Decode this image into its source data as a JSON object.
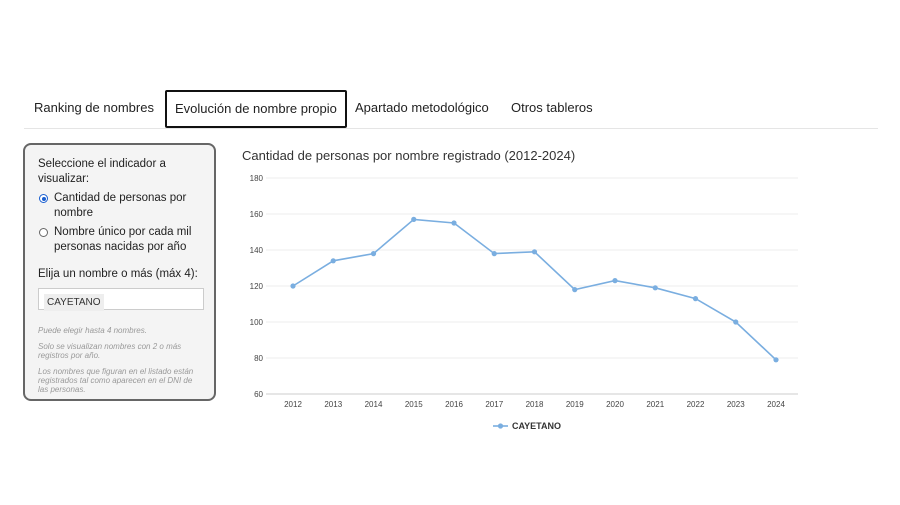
{
  "tabs": [
    {
      "label": "Ranking de nombres"
    },
    {
      "label": "Evolución de nombre propio",
      "active": true
    },
    {
      "label": "Apartado metodológico"
    },
    {
      "label": "Otros tableros"
    }
  ],
  "panel": {
    "indicator_label": "Seleccione el indicador a visualizar:",
    "options": [
      {
        "label_line1": "Cantidad de personas por",
        "label_line2": "nombre",
        "selected": true
      },
      {
        "label_line1": "Nombre único por cada mil",
        "label_line2": "personas nacidas por año",
        "selected": false
      }
    ],
    "name_label": "Elija un nombre o más (máx 4):",
    "selected_name": "CAYETANO",
    "notes": [
      "Puede elegir hasta 4 nombres.",
      "Solo se visualizan nombres con 2 o más registros por año.",
      "Los nombres que figuran en el listado están registrados tal como aparecen en el DNI de las personas."
    ]
  },
  "chart_data": {
    "type": "line",
    "title": "Cantidad de personas por nombre registrado (2012-2024)",
    "x": [
      "2012",
      "2013",
      "2014",
      "2015",
      "2016",
      "2017",
      "2018",
      "2019",
      "2020",
      "2021",
      "2022",
      "2023",
      "2024"
    ],
    "series": [
      {
        "name": "CAYETANO",
        "values": [
          120,
          134,
          138,
          157,
          155,
          138,
          139,
          118,
          123,
          119,
          113,
          100,
          79
        ],
        "color": "#7aaee0"
      }
    ],
    "yticks": [
      60,
      80,
      100,
      120,
      140,
      160,
      180
    ],
    "ylim": [
      60,
      180
    ],
    "grid": true,
    "legend": "bottom-center"
  }
}
